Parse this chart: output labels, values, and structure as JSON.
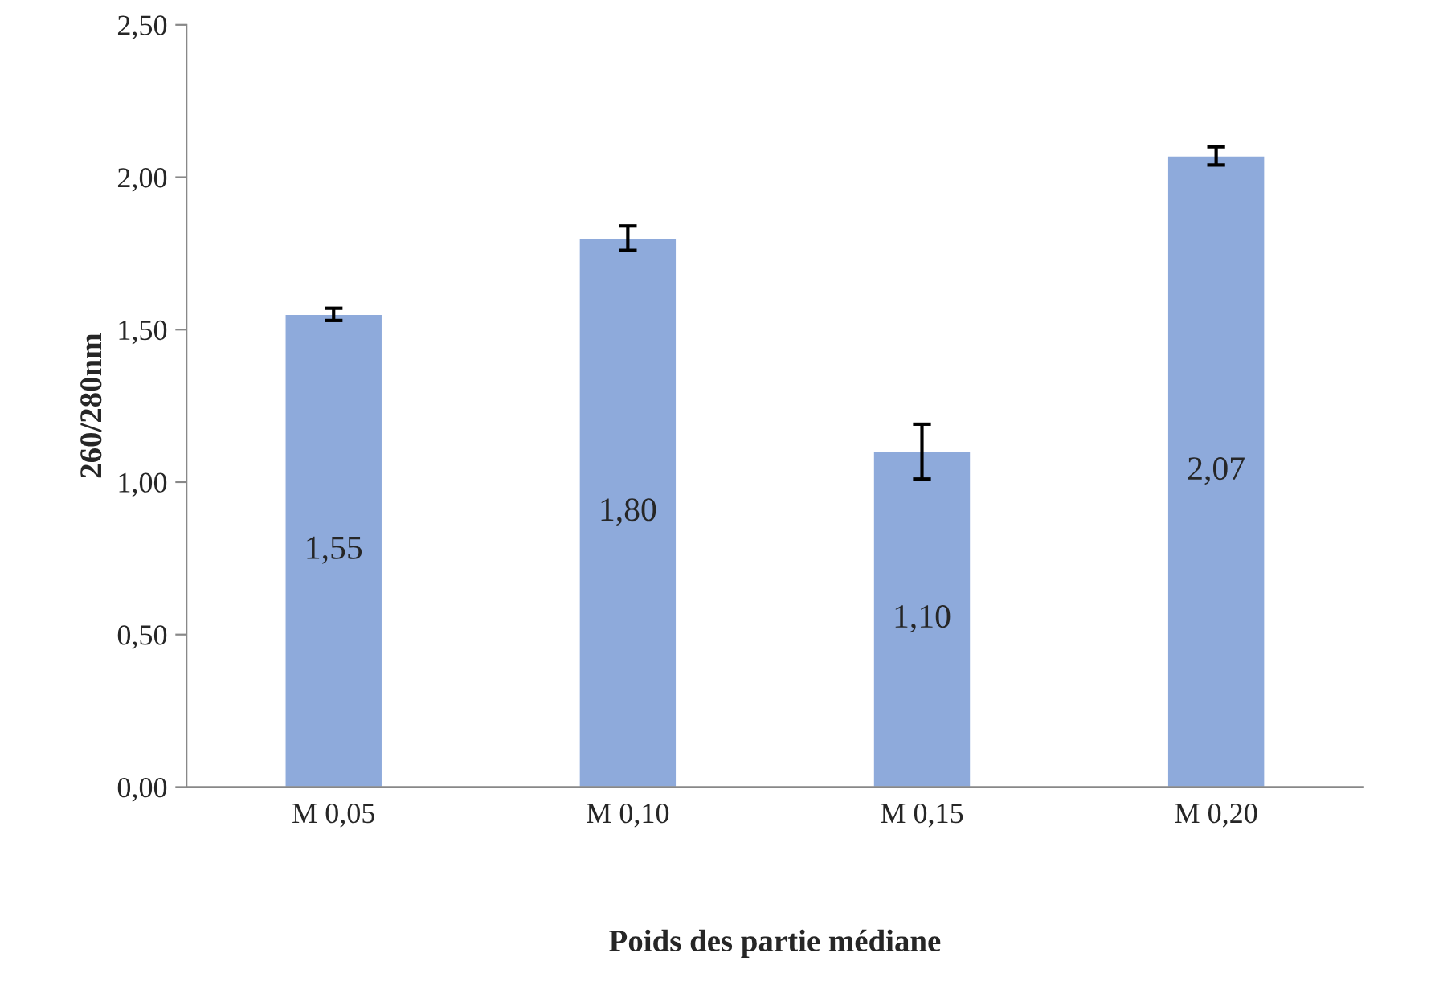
{
  "chart_data": {
    "type": "bar",
    "xlabel": "Poids des partie médiane",
    "ylabel": "260/280nm",
    "categories": [
      "M 0,05",
      "M 0,10",
      "M 0,15",
      "M 0,20"
    ],
    "values": [
      1.55,
      1.8,
      1.1,
      2.07
    ],
    "errors": [
      0.02,
      0.04,
      0.09,
      0.03
    ],
    "value_labels": [
      "1,55",
      "1,80",
      "1,10",
      "2,07"
    ],
    "color": "#8eaadb",
    "ylim": [
      0,
      2.5
    ],
    "yticks": [
      {
        "value": 0,
        "label": "0,00"
      },
      {
        "value": 0.5,
        "label": "0,50"
      },
      {
        "value": 1.0,
        "label": "1,00"
      },
      {
        "value": 1.5,
        "label": "1,50"
      },
      {
        "value": 2.0,
        "label": "2,00"
      },
      {
        "value": 2.5,
        "label": "2,50"
      }
    ],
    "grid": false
  }
}
